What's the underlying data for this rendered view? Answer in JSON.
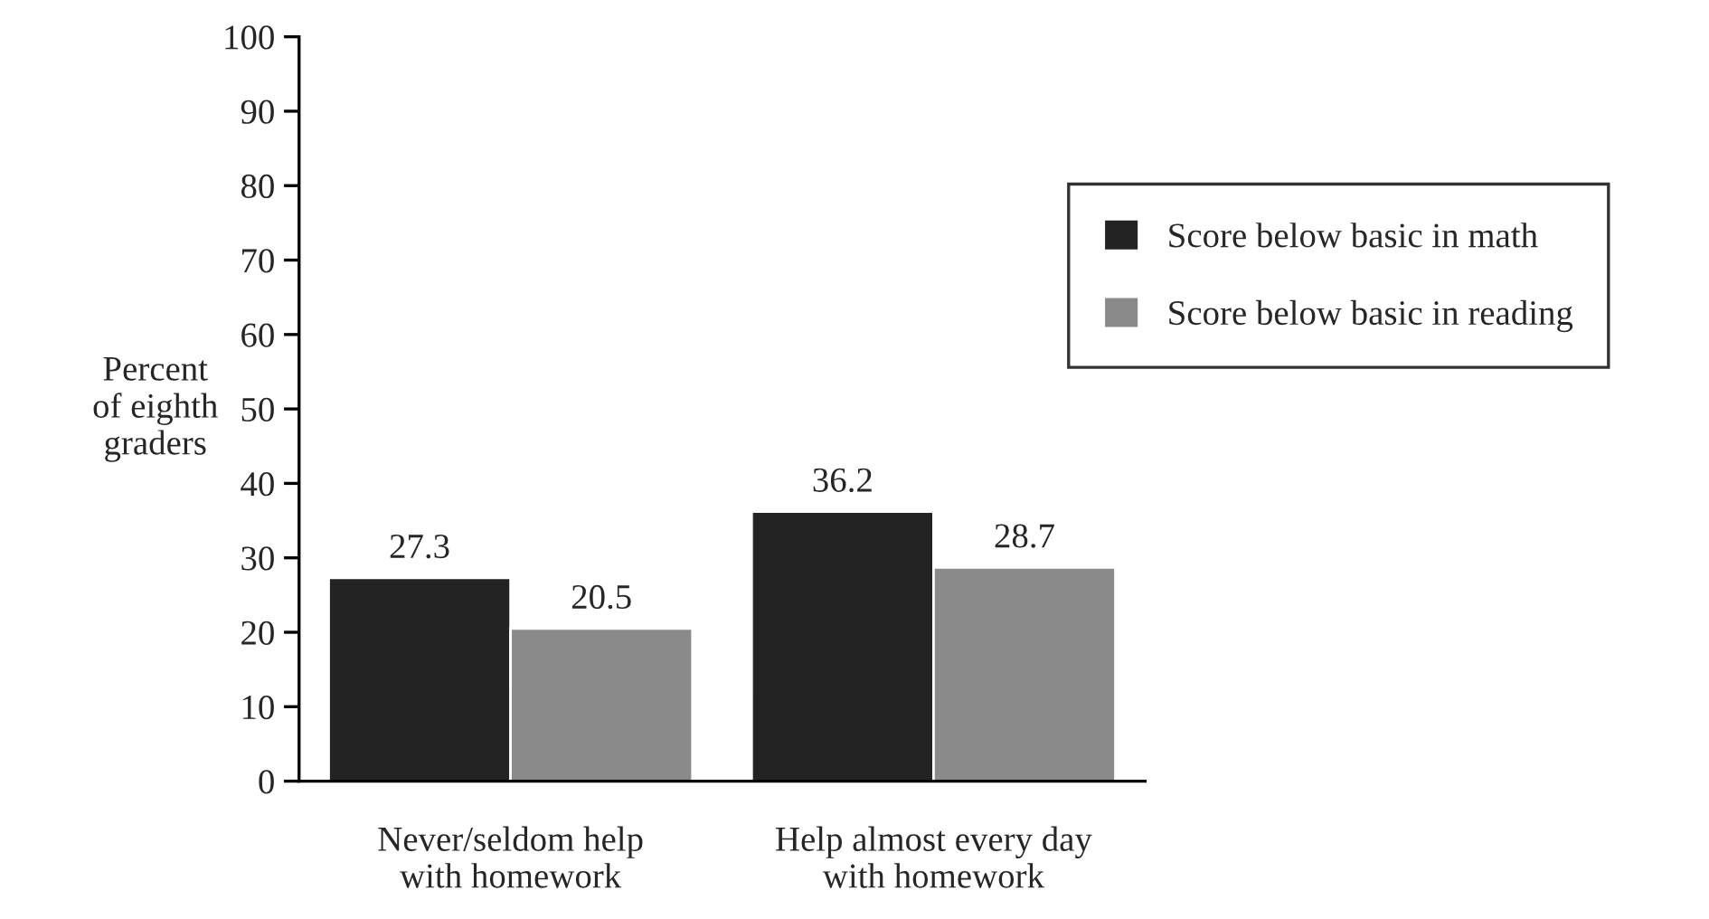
{
  "chart_data": {
    "type": "bar",
    "categories": [
      "Never/seldom help\nwith homework",
      "Help almost every day\nwith homework"
    ],
    "ylabel": "Percent\nof eighth\ngraders",
    "series": [
      {
        "name": "Score below basic in math",
        "color": "#232323",
        "values": [
          27.3,
          36.2
        ]
      },
      {
        "name": "Score below basic in reading",
        "color": "#8a8a8a",
        "values": [
          20.5,
          28.7
        ]
      }
    ],
    "ylim": [
      0,
      100
    ],
    "yticks": [
      0,
      10,
      20,
      30,
      40,
      50,
      60,
      70,
      80,
      90,
      100
    ],
    "data_labels": true,
    "grid": false,
    "legend": "right"
  }
}
